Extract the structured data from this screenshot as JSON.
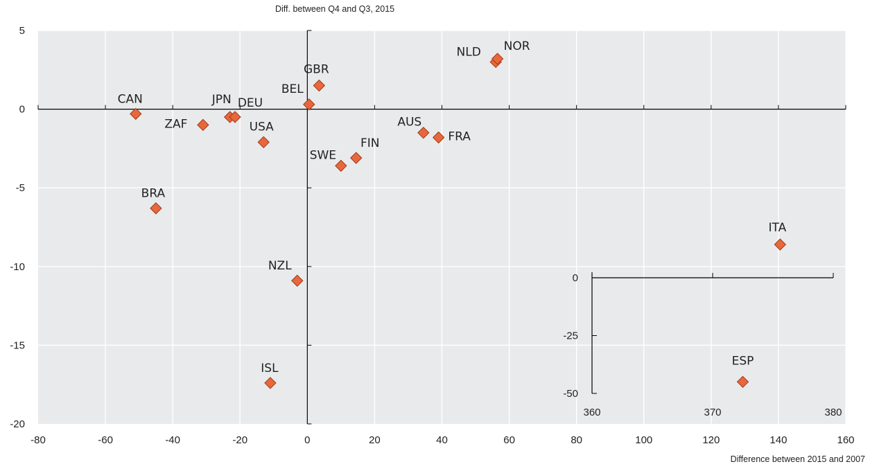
{
  "chart_data": [
    {
      "type": "scatter",
      "ylabel": "Diff. between Q4 and Q3, 2015",
      "xlabel": "Difference between 2015 and 2007",
      "xlim": [
        -80,
        160
      ],
      "ylim": [
        -20,
        5
      ],
      "x_ticks": [
        "-80",
        "-60",
        "-40",
        "-20",
        "0",
        "20",
        "40",
        "60",
        "80",
        "100",
        "120",
        "140",
        "160"
      ],
      "y_ticks": [
        "5",
        "0",
        "-5",
        "-10",
        "-15",
        "-20"
      ],
      "grid": true,
      "marker_color": "#E8673C",
      "points": [
        {
          "label": "CAN",
          "x": -51,
          "y": -0.3
        },
        {
          "label": "ZAF",
          "x": -31,
          "y": -1.0
        },
        {
          "label": "JPN",
          "x": -23,
          "y": -0.5
        },
        {
          "label": "DEU",
          "x": -21.5,
          "y": -0.5
        },
        {
          "label": "USA",
          "x": -13,
          "y": -2.1
        },
        {
          "label": "BRA",
          "x": -45,
          "y": -6.3
        },
        {
          "label": "BEL",
          "x": 0.5,
          "y": 0.3
        },
        {
          "label": "GBR",
          "x": 3.5,
          "y": 1.5
        },
        {
          "label": "SWE",
          "x": 10,
          "y": -3.6
        },
        {
          "label": "FIN",
          "x": 14.5,
          "y": -3.1
        },
        {
          "label": "AUS",
          "x": 34.5,
          "y": -1.5
        },
        {
          "label": "FRA",
          "x": 39,
          "y": -1.8
        },
        {
          "label": "NLD",
          "x": 56,
          "y": 3.0
        },
        {
          "label": "NOR",
          "x": 56.5,
          "y": 3.2
        },
        {
          "label": "ITA",
          "x": 140.5,
          "y": -8.6
        },
        {
          "label": "NZL",
          "x": -3,
          "y": -10.9
        },
        {
          "label": "ISL",
          "x": -11,
          "y": -17.4
        }
      ]
    },
    {
      "type": "scatter",
      "title": "",
      "xlim": [
        360,
        380
      ],
      "ylim": [
        -50,
        0
      ],
      "x_ticks": [
        "360",
        "370",
        "380"
      ],
      "y_ticks": [
        "0",
        "-25",
        "-50"
      ],
      "grid": false,
      "marker_color": "#E8673C",
      "points": [
        {
          "label": "ESP",
          "x": 372.5,
          "y": -45
        }
      ]
    }
  ]
}
